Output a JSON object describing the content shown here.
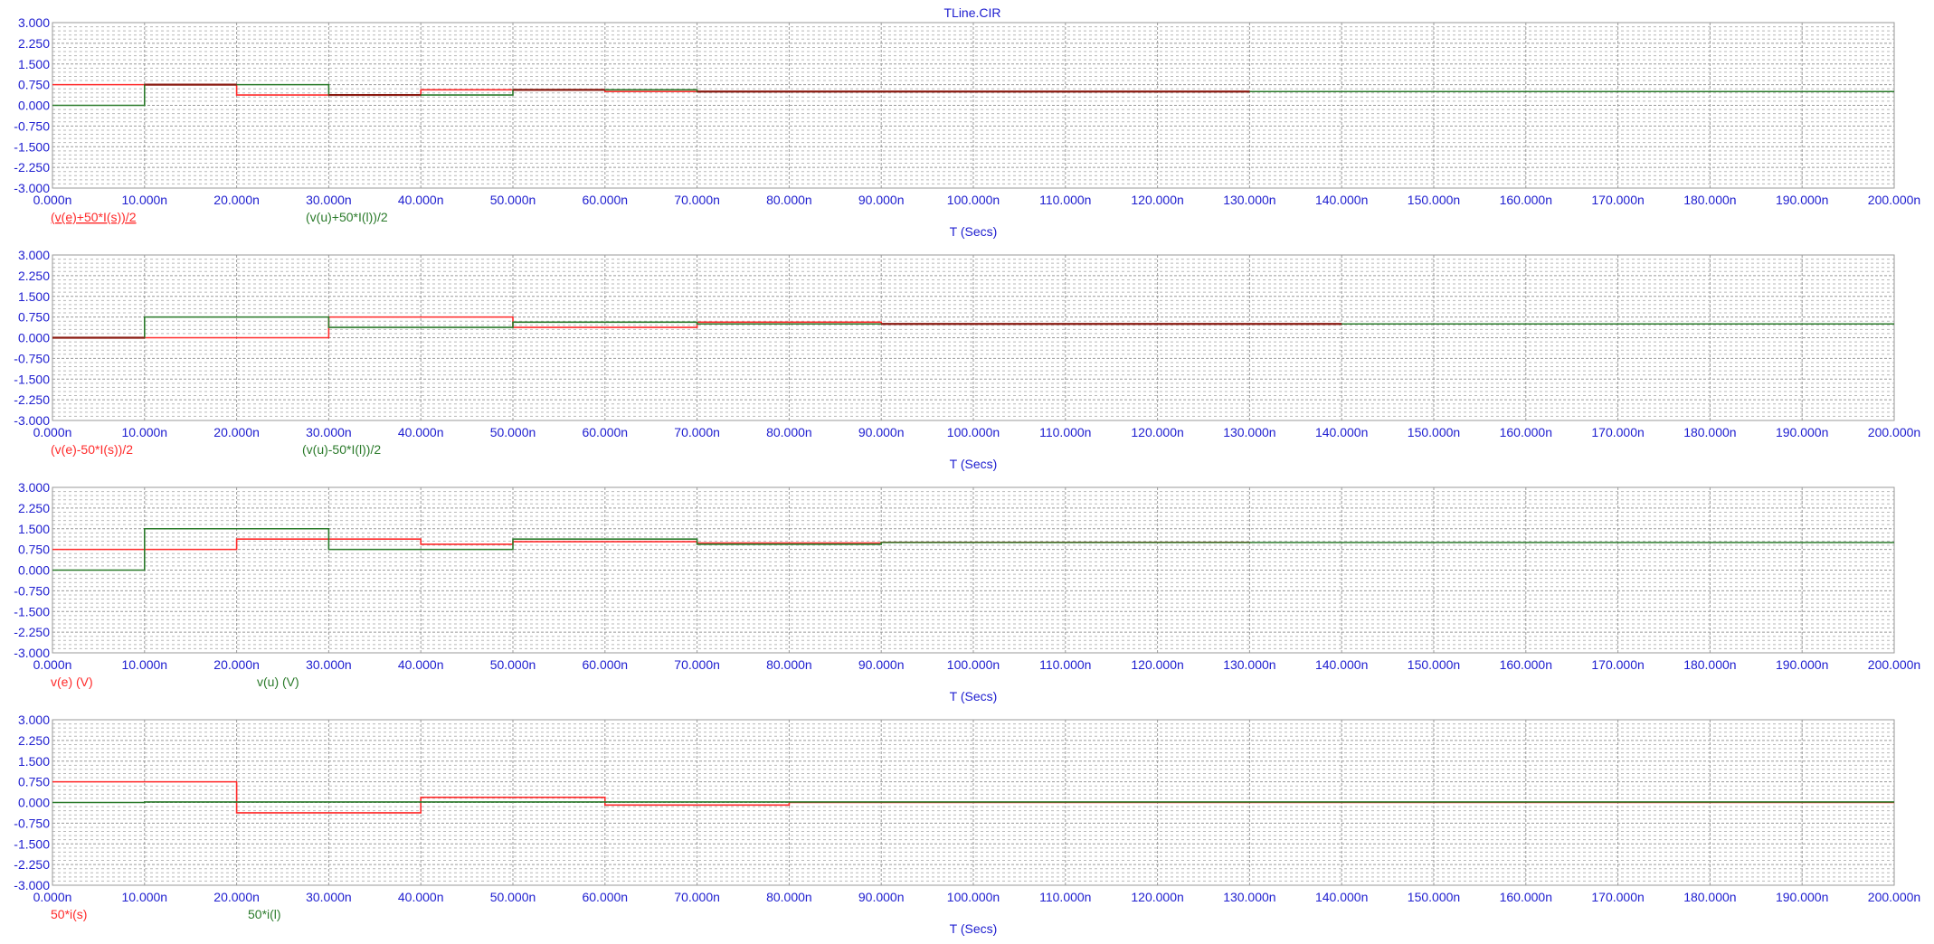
{
  "title": "TLine.CIR",
  "colors": {
    "background": "#ffffff",
    "text": "#2020d0",
    "frame": "#9a9a9a",
    "grid_major": "#9a9a9a",
    "grid_minor": "#b8b8b8",
    "series_a": "#ff2a2a",
    "series_b": "#2a7a2a",
    "overlap": "#8a1a10"
  },
  "chart_data": [
    {
      "type": "line",
      "title": "TLine.CIR",
      "xlabel": "T (Secs)",
      "ylabel": "",
      "xlim": [
        0,
        200
      ],
      "ylim": [
        -3,
        3
      ],
      "x_unit": "ns",
      "x_ticks": [
        "0.000n",
        "10.000n",
        "20.000n",
        "30.000n",
        "40.000n",
        "50.000n",
        "60.000n",
        "70.000n",
        "80.000n",
        "90.000n",
        "100.000n",
        "110.000n",
        "120.000n",
        "130.000n",
        "140.000n",
        "150.000n",
        "160.000n",
        "170.000n",
        "180.000n",
        "190.000n",
        "200.000n"
      ],
      "y_ticks": [
        "3.000",
        "2.250",
        "1.500",
        "0.750",
        "0.000",
        "-0.750",
        "-1.500",
        "-2.250",
        "-3.000"
      ],
      "grid": true,
      "step": true,
      "series": [
        {
          "name": "(v(e)+50*I(s))/2",
          "color": "#ff2a2a",
          "underline": true,
          "x": [
            0,
            10,
            20,
            30,
            40,
            50,
            60,
            70,
            80,
            90,
            100,
            110,
            120,
            130
          ],
          "y": [
            0.75,
            0.75,
            0.375,
            0.375,
            0.5625,
            0.5625,
            0.5,
            0.5,
            0.5,
            0.5,
            0.5,
            0.5,
            0.5,
            0.5
          ]
        },
        {
          "name": "(v(u)+50*I(l))/2",
          "color": "#2a7a2a",
          "x": [
            0,
            10,
            30,
            50,
            70,
            200
          ],
          "y": [
            0,
            0.75,
            0.375,
            0.5625,
            0.5,
            0.5
          ]
        }
      ]
    },
    {
      "type": "line",
      "title": "",
      "xlabel": "T (Secs)",
      "ylabel": "",
      "xlim": [
        0,
        200
      ],
      "ylim": [
        -3,
        3
      ],
      "x_unit": "ns",
      "x_ticks": [
        "0.000n",
        "10.000n",
        "20.000n",
        "30.000n",
        "40.000n",
        "50.000n",
        "60.000n",
        "70.000n",
        "80.000n",
        "90.000n",
        "100.000n",
        "110.000n",
        "120.000n",
        "130.000n",
        "140.000n",
        "150.000n",
        "160.000n",
        "170.000n",
        "180.000n",
        "190.000n",
        "200.000n"
      ],
      "y_ticks": [
        "3.000",
        "2.250",
        "1.500",
        "0.750",
        "0.000",
        "-0.750",
        "-1.500",
        "-2.250",
        "-3.000"
      ],
      "grid": true,
      "step": true,
      "series": [
        {
          "name": "(v(e)-50*I(s))/2",
          "color": "#ff2a2a",
          "x": [
            0,
            20,
            30,
            40,
            50,
            60,
            70,
            80,
            90,
            140
          ],
          "y": [
            0,
            0,
            0.75,
            0.75,
            0.375,
            0.375,
            0.5625,
            0.5625,
            0.5,
            0.5
          ]
        },
        {
          "name": "(v(u)-50*I(l))/2",
          "color": "#2a7a2a",
          "x": [
            0,
            10,
            30,
            50,
            70,
            200
          ],
          "y": [
            0,
            0.75,
            0.375,
            0.5625,
            0.5,
            0.5
          ]
        }
      ]
    },
    {
      "type": "line",
      "title": "",
      "xlabel": "T (Secs)",
      "ylabel": "",
      "xlim": [
        0,
        200
      ],
      "ylim": [
        -3,
        3
      ],
      "x_unit": "ns",
      "x_ticks": [
        "0.000n",
        "10.000n",
        "20.000n",
        "30.000n",
        "40.000n",
        "50.000n",
        "60.000n",
        "70.000n",
        "80.000n",
        "90.000n",
        "100.000n",
        "110.000n",
        "120.000n",
        "130.000n",
        "140.000n",
        "150.000n",
        "160.000n",
        "170.000n",
        "180.000n",
        "190.000n",
        "200.000n"
      ],
      "y_ticks": [
        "3.000",
        "2.250",
        "1.500",
        "0.750",
        "0.000",
        "-0.750",
        "-1.500",
        "-2.250",
        "-3.000"
      ],
      "grid": true,
      "step": true,
      "series": [
        {
          "name": "v(e) (V)",
          "color": "#ff2a2a",
          "x": [
            0,
            20,
            40,
            50,
            70,
            90,
            130
          ],
          "y": [
            0.75,
            1.125,
            0.9375,
            1.031,
            0.984,
            1.008,
            1.0
          ]
        },
        {
          "name": "v(u) (V)",
          "color": "#2a7a2a",
          "x": [
            0,
            10,
            30,
            50,
            70,
            90,
            200
          ],
          "y": [
            0,
            1.5,
            0.75,
            1.125,
            0.9375,
            1.0,
            1.0
          ]
        }
      ]
    },
    {
      "type": "line",
      "title": "",
      "xlabel": "T (Secs)",
      "ylabel": "",
      "xlim": [
        0,
        200
      ],
      "ylim": [
        -3,
        3
      ],
      "x_unit": "ns",
      "x_ticks": [
        "0.000n",
        "10.000n",
        "20.000n",
        "30.000n",
        "40.000n",
        "50.000n",
        "60.000n",
        "70.000n",
        "80.000n",
        "90.000n",
        "100.000n",
        "110.000n",
        "120.000n",
        "130.000n",
        "140.000n",
        "150.000n",
        "160.000n",
        "170.000n",
        "180.000n",
        "190.000n",
        "200.000n"
      ],
      "y_ticks": [
        "3.000",
        "2.250",
        "1.500",
        "0.750",
        "0.000",
        "-0.750",
        "-1.500",
        "-2.250",
        "-3.000"
      ],
      "grid": true,
      "step": true,
      "series": [
        {
          "name": "50*i(s)",
          "color": "#ff2a2a",
          "x": [
            0,
            20,
            40,
            60,
            80,
            200
          ],
          "y": [
            0.75,
            -0.375,
            0.1875,
            -0.09375,
            0,
            0
          ]
        },
        {
          "name": "50*i(l)",
          "color": "#2a7a2a",
          "x": [
            0,
            10,
            200
          ],
          "y": [
            0,
            0.02,
            0.02
          ]
        }
      ]
    }
  ]
}
